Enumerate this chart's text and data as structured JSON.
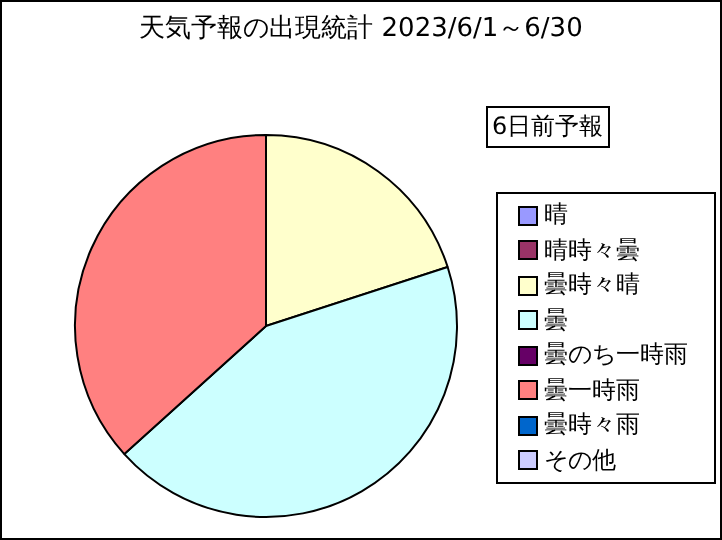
{
  "chart_data": {
    "type": "pie",
    "title": "天気予報の出現統計 2023/6/1～6/30",
    "legend_title": "6日前予報",
    "legend": "right",
    "categories": [
      "晴",
      "晴時々曇",
      "曇時々晴",
      "曇",
      "曇のち一時雨",
      "曇一時雨",
      "曇時々雨",
      "その他"
    ],
    "values": [
      0,
      0,
      20,
      43.3,
      0,
      36.7,
      0,
      0
    ],
    "colors": [
      "#9999ff",
      "#993366",
      "#ffffcc",
      "#ccffff",
      "#660066",
      "#ff8080",
      "#0066cc",
      "#ccccff"
    ]
  }
}
